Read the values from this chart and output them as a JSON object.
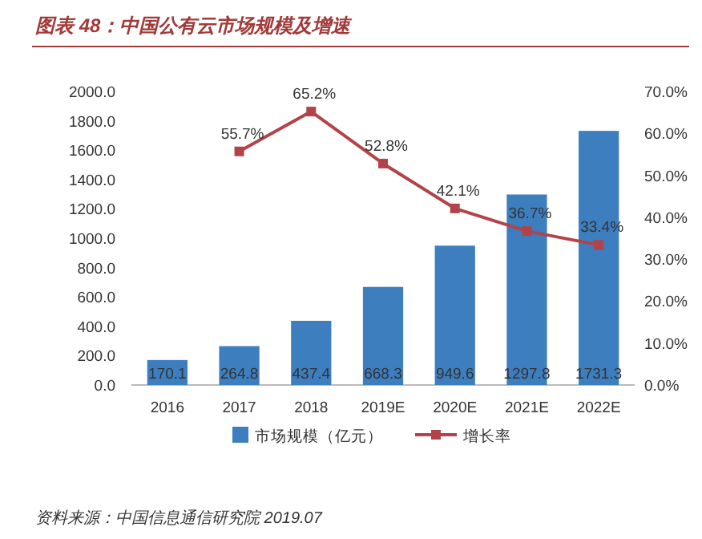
{
  "chart_data": {
    "type": "bar",
    "title": "图表 48：中国公有云市场规模及增速",
    "annotations": [
      "资料来源：中国信息通信研究院 2019.07"
    ],
    "categories": [
      "2016",
      "2017",
      "2018",
      "2019E",
      "2020E",
      "2021E",
      "2022E"
    ],
    "series": [
      {
        "name": "市场规模（亿元）",
        "color": "#3d7ebf",
        "values": [
          170.1,
          264.8,
          437.4,
          668.3,
          949.6,
          1297.8,
          1731.3
        ],
        "value_labels": [
          "170.1",
          "264.8",
          "437.4",
          "668.3",
          "949.6",
          "1297.8",
          "1731.3"
        ]
      },
      {
        "name": "增长率",
        "type": "line",
        "axis": "y2",
        "color": "#b3434a",
        "marker": "square",
        "values": [
          null,
          55.7,
          65.2,
          52.8,
          42.1,
          36.7,
          33.4
        ],
        "value_labels": [
          null,
          "55.7%",
          "65.2%",
          "52.8%",
          "42.1%",
          "36.7%",
          "33.4%"
        ]
      }
    ],
    "ylim": [
      0,
      2000
    ],
    "yticks": [
      {
        "value": 0,
        "label": "0.0"
      },
      {
        "value": 200,
        "label": "200.0"
      },
      {
        "value": 400,
        "label": "400.0"
      },
      {
        "value": 600,
        "label": "600.0"
      },
      {
        "value": 800,
        "label": "800.0"
      },
      {
        "value": 1000,
        "label": "1000.0"
      },
      {
        "value": 1200,
        "label": "1200.0"
      },
      {
        "value": 1400,
        "label": "1400.0"
      },
      {
        "value": 1600,
        "label": "1600.0"
      },
      {
        "value": 1800,
        "label": "1800.0"
      },
      {
        "value": 2000,
        "label": "2000.0"
      }
    ],
    "y2lim": [
      0,
      70
    ],
    "y2ticks": [
      {
        "value": 0,
        "label": "0.0%"
      },
      {
        "value": 10,
        "label": "10.0%"
      },
      {
        "value": 20,
        "label": "20.0%"
      },
      {
        "value": 30,
        "label": "30.0%"
      },
      {
        "value": 40,
        "label": "40.0%"
      },
      {
        "value": 50,
        "label": "50.0%"
      },
      {
        "value": 60,
        "label": "60.0%"
      },
      {
        "value": 70,
        "label": "70.0%"
      }
    ],
    "legend": "bottom",
    "grid": false
  }
}
